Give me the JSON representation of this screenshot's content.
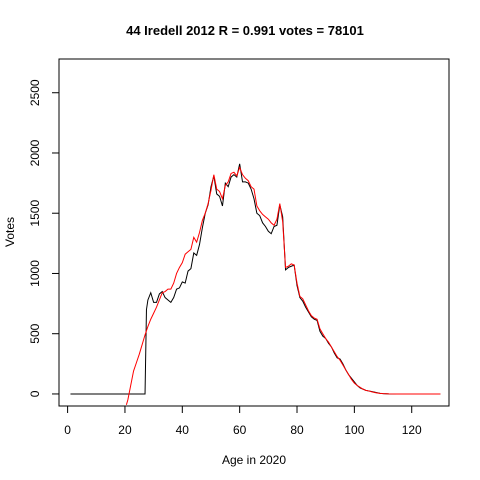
{
  "chart_data": {
    "type": "line",
    "title": "44 Iredell 2012 R = 0.991 votes = 78101",
    "xlabel": "Age in 2020",
    "ylabel": "Votes",
    "xlim": [
      -3,
      133
    ],
    "ylim": [
      -100,
      2780
    ],
    "xticks": [
      0,
      20,
      40,
      60,
      80,
      100,
      120
    ],
    "yticks": [
      0,
      500,
      1000,
      1500,
      2000,
      2500
    ],
    "grid": false,
    "series": [
      {
        "color": "#000000",
        "points": [
          [
            1,
            0
          ],
          [
            26,
            0
          ],
          [
            27,
            0
          ],
          [
            27.5,
            700
          ],
          [
            28,
            780
          ],
          [
            29,
            840
          ],
          [
            30,
            760
          ],
          [
            31,
            760
          ],
          [
            32,
            830
          ],
          [
            33,
            850
          ],
          [
            34,
            800
          ],
          [
            35,
            780
          ],
          [
            36,
            760
          ],
          [
            37,
            800
          ],
          [
            38,
            870
          ],
          [
            39,
            880
          ],
          [
            40,
            930
          ],
          [
            41,
            920
          ],
          [
            42,
            1020
          ],
          [
            43,
            1040
          ],
          [
            44,
            1170
          ],
          [
            45,
            1150
          ],
          [
            46,
            1240
          ],
          [
            47,
            1380
          ],
          [
            48,
            1500
          ],
          [
            49,
            1570
          ],
          [
            50,
            1720
          ],
          [
            51,
            1810
          ],
          [
            52,
            1660
          ],
          [
            53,
            1640
          ],
          [
            54,
            1560
          ],
          [
            55,
            1750
          ],
          [
            56,
            1720
          ],
          [
            57,
            1800
          ],
          [
            58,
            1820
          ],
          [
            59,
            1800
          ],
          [
            60,
            1910
          ],
          [
            61,
            1760
          ],
          [
            62,
            1760
          ],
          [
            63,
            1750
          ],
          [
            64,
            1700
          ],
          [
            65,
            1620
          ],
          [
            66,
            1500
          ],
          [
            67,
            1480
          ],
          [
            68,
            1420
          ],
          [
            69,
            1390
          ],
          [
            70,
            1350
          ],
          [
            71,
            1330
          ],
          [
            72,
            1390
          ],
          [
            73,
            1400
          ],
          [
            74,
            1570
          ],
          [
            75,
            1470
          ],
          [
            76,
            1030
          ],
          [
            77,
            1050
          ],
          [
            78,
            1060
          ],
          [
            79,
            1070
          ],
          [
            80,
            900
          ],
          [
            81,
            800
          ],
          [
            82,
            770
          ],
          [
            83,
            720
          ],
          [
            84,
            680
          ],
          [
            85,
            640
          ],
          [
            86,
            620
          ],
          [
            87,
            610
          ],
          [
            88,
            520
          ],
          [
            89,
            480
          ],
          [
            90,
            460
          ],
          [
            91,
            420
          ],
          [
            92,
            390
          ],
          [
            93,
            340
          ],
          [
            94,
            300
          ],
          [
            95,
            290
          ],
          [
            96,
            250
          ],
          [
            97,
            200
          ],
          [
            98,
            160
          ],
          [
            99,
            130
          ],
          [
            100,
            100
          ],
          [
            101,
            70
          ],
          [
            102,
            50
          ],
          [
            103,
            40
          ],
          [
            104,
            30
          ],
          [
            105,
            25
          ],
          [
            106,
            20
          ],
          [
            107,
            15
          ],
          [
            108,
            10
          ],
          [
            109,
            5
          ],
          [
            110,
            3
          ],
          [
            112,
            1
          ],
          [
            115,
            0
          ],
          [
            130,
            0
          ]
        ]
      },
      {
        "color": "#ff0000",
        "points": [
          [
            20.5,
            -90
          ],
          [
            21,
            -50
          ],
          [
            22,
            70
          ],
          [
            23,
            190
          ],
          [
            24,
            260
          ],
          [
            25,
            330
          ],
          [
            26,
            410
          ],
          [
            27,
            490
          ],
          [
            28,
            560
          ],
          [
            29,
            620
          ],
          [
            30,
            670
          ],
          [
            31,
            720
          ],
          [
            32,
            780
          ],
          [
            33,
            840
          ],
          [
            34,
            850
          ],
          [
            35,
            870
          ],
          [
            36,
            870
          ],
          [
            37,
            920
          ],
          [
            38,
            1000
          ],
          [
            39,
            1050
          ],
          [
            40,
            1090
          ],
          [
            41,
            1160
          ],
          [
            42,
            1180
          ],
          [
            43,
            1200
          ],
          [
            44,
            1300
          ],
          [
            45,
            1260
          ],
          [
            46,
            1340
          ],
          [
            47,
            1440
          ],
          [
            48,
            1500
          ],
          [
            49,
            1580
          ],
          [
            50,
            1690
          ],
          [
            51,
            1820
          ],
          [
            52,
            1700
          ],
          [
            53,
            1680
          ],
          [
            54,
            1620
          ],
          [
            55,
            1730
          ],
          [
            56,
            1760
          ],
          [
            57,
            1830
          ],
          [
            58,
            1840
          ],
          [
            59,
            1810
          ],
          [
            60,
            1880
          ],
          [
            61,
            1820
          ],
          [
            62,
            1790
          ],
          [
            63,
            1770
          ],
          [
            64,
            1720
          ],
          [
            65,
            1700
          ],
          [
            66,
            1560
          ],
          [
            67,
            1520
          ],
          [
            68,
            1490
          ],
          [
            69,
            1470
          ],
          [
            70,
            1450
          ],
          [
            71,
            1420
          ],
          [
            72,
            1400
          ],
          [
            73,
            1450
          ],
          [
            74,
            1580
          ],
          [
            75,
            1430
          ],
          [
            76,
            1050
          ],
          [
            77,
            1060
          ],
          [
            78,
            1080
          ],
          [
            79,
            1070
          ],
          [
            80,
            920
          ],
          [
            81,
            810
          ],
          [
            82,
            790
          ],
          [
            83,
            740
          ],
          [
            84,
            690
          ],
          [
            85,
            650
          ],
          [
            86,
            630
          ],
          [
            87,
            620
          ],
          [
            88,
            540
          ],
          [
            89,
            500
          ],
          [
            90,
            460
          ],
          [
            91,
            430
          ],
          [
            92,
            390
          ],
          [
            93,
            350
          ],
          [
            94,
            310
          ],
          [
            95,
            280
          ],
          [
            96,
            240
          ],
          [
            97,
            200
          ],
          [
            98,
            160
          ],
          [
            99,
            120
          ],
          [
            100,
            90
          ],
          [
            101,
            70
          ],
          [
            102,
            55
          ],
          [
            103,
            40
          ],
          [
            104,
            30
          ],
          [
            105,
            25
          ],
          [
            106,
            18
          ],
          [
            107,
            12
          ],
          [
            108,
            8
          ],
          [
            109,
            5
          ],
          [
            110,
            3
          ],
          [
            112,
            1
          ],
          [
            115,
            0
          ],
          [
            130,
            0
          ]
        ]
      }
    ]
  }
}
